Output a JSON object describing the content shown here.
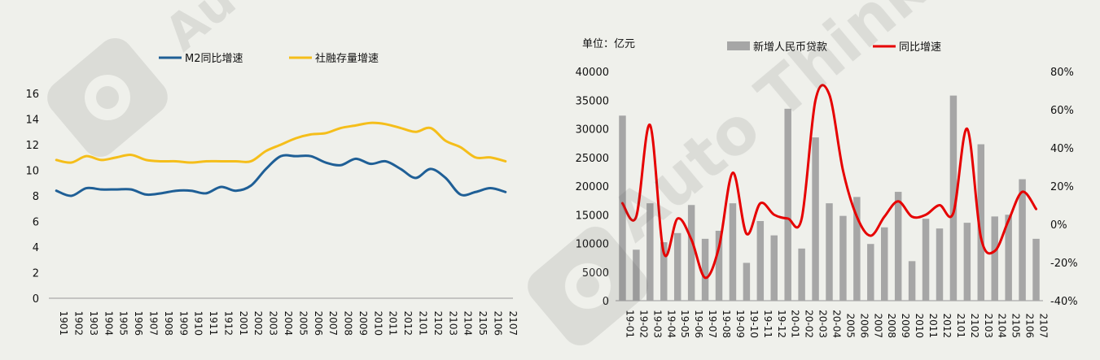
{
  "chart_data": [
    {
      "type": "line",
      "ylim": [
        0,
        16
      ],
      "yticks": [
        "0",
        "2",
        "4",
        "6",
        "8",
        "10",
        "12",
        "14",
        "16"
      ],
      "x": [
        "1901",
        "1902",
        "1903",
        "1904",
        "1905",
        "1906",
        "1907",
        "1908",
        "1909",
        "1910",
        "1911",
        "1912",
        "2001",
        "2002",
        "2003",
        "2004",
        "2005",
        "2006",
        "2007",
        "2008",
        "2009",
        "2010",
        "2011",
        "2012",
        "2101",
        "2102",
        "2103",
        "2104",
        "2105",
        "2106",
        "2107"
      ],
      "series": [
        {
          "name": "M2同比增速",
          "color": "#1f5f96",
          "values": [
            8.4,
            8.0,
            8.6,
            8.5,
            8.5,
            8.5,
            8.1,
            8.2,
            8.4,
            8.4,
            8.2,
            8.7,
            8.4,
            8.8,
            10.1,
            11.1,
            11.1,
            11.1,
            10.6,
            10.4,
            10.9,
            10.5,
            10.7,
            10.1,
            9.4,
            10.1,
            9.4,
            8.1,
            8.3,
            8.6,
            8.3
          ]
        },
        {
          "name": "社融存量增速",
          "color": "#f5be1a",
          "values": [
            10.8,
            10.6,
            11.1,
            10.8,
            11.0,
            11.2,
            10.8,
            10.7,
            10.7,
            10.6,
            10.7,
            10.7,
            10.7,
            10.7,
            11.5,
            12.0,
            12.5,
            12.8,
            12.9,
            13.3,
            13.5,
            13.7,
            13.6,
            13.3,
            13.0,
            13.3,
            12.3,
            11.8,
            11.0,
            11.0,
            10.7
          ]
        }
      ],
      "legend": "top"
    },
    {
      "type": "bar",
      "unit_label": "单位：亿元",
      "ylim": [
        0,
        40000
      ],
      "y2lim": [
        -40,
        80
      ],
      "yticks": [
        "0",
        "5000",
        "10000",
        "15000",
        "20000",
        "25000",
        "30000",
        "35000",
        "40000"
      ],
      "y2ticks": [
        "-40%",
        "-20%",
        "0%",
        "20%",
        "40%",
        "60%",
        "80%"
      ],
      "categories": [
        "19-01",
        "19-02",
        "19-03",
        "19-04",
        "19-05",
        "19-06",
        "19-07",
        "19-08",
        "19-09",
        "19-10",
        "19-11",
        "19-12",
        "20-01",
        "20-02",
        "20-03",
        "20-04",
        "2005",
        "2006",
        "2007",
        "2008",
        "2009",
        "2010",
        "2011",
        "2012",
        "2101",
        "2102",
        "2103",
        "2104",
        "2105",
        "2106",
        "2107"
      ],
      "series": [
        {
          "name": "新增人民币贷款",
          "type": "bar",
          "axis": "left",
          "color": "#a6a6a6",
          "values": [
            32300,
            8900,
            17000,
            10200,
            11800,
            16700,
            10800,
            12200,
            17000,
            6600,
            13900,
            11400,
            33500,
            9100,
            28500,
            17000,
            14800,
            18100,
            9900,
            12800,
            19000,
            6900,
            14300,
            12600,
            35800,
            13600,
            27300,
            14700,
            15000,
            21200,
            10800
          ]
        },
        {
          "name": "同比增速",
          "type": "line",
          "axis": "right",
          "color": "#e60000",
          "values": [
            11,
            4,
            52,
            -15,
            3,
            -8,
            -28,
            -12,
            27,
            -5,
            11,
            5,
            3,
            3,
            65,
            68,
            28,
            4,
            -6,
            4,
            12,
            4,
            5,
            10,
            6,
            50,
            -7,
            -14,
            2,
            17,
            8
          ]
        }
      ],
      "legend": "top"
    }
  ]
}
